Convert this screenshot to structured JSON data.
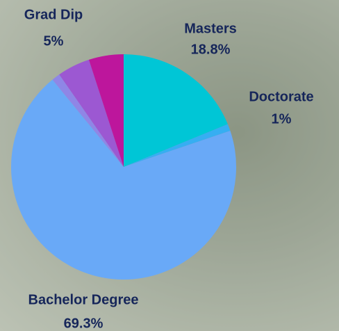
{
  "chart_data": {
    "type": "pie",
    "categories": [
      "Masters",
      "Doctorate",
      "Bachelor Degree",
      null,
      null,
      "Grad Dip"
    ],
    "values": [
      18.8,
      1,
      69.3,
      1.2,
      4.7,
      5
    ],
    "value_labels": [
      "18.8%",
      "1%",
      "69.3%",
      null,
      null,
      "5%"
    ],
    "colors": [
      "#00c6d6",
      "#36aef2",
      "#69a9f7",
      "#8f86e6",
      "#9c58d2",
      "#bd169c"
    ]
  }
}
